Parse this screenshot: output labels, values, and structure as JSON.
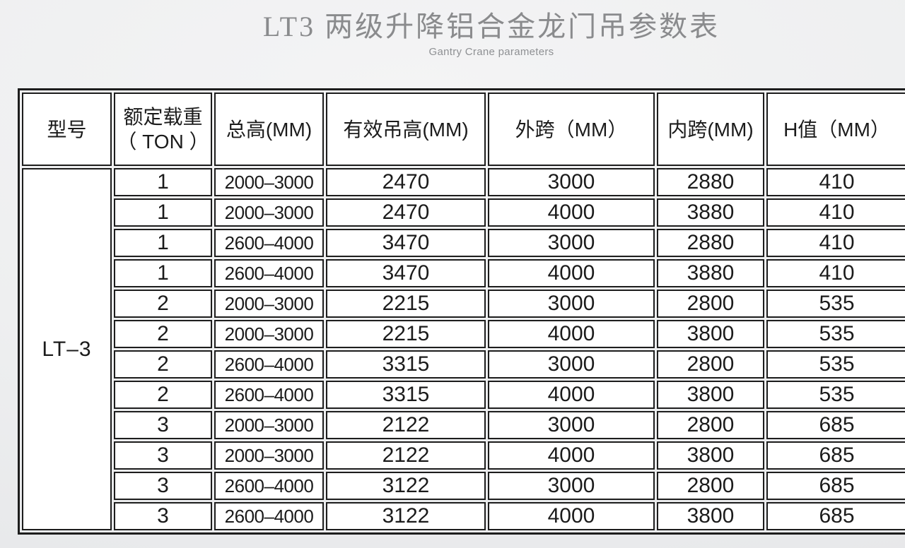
{
  "page": {
    "title": "LT3 两级升降铝合金龙门吊参数表",
    "subtitle": "Gantry Crane parameters",
    "title_color": "#8a8b8d",
    "background_color": "#edeef0"
  },
  "table": {
    "border_color": "#1d1d1d",
    "cell_background": "#ffffff",
    "model_label": "LT–3",
    "headers": {
      "model": "型号",
      "rated_load_line1": "额定载重",
      "rated_load_line2": "（ TON ）",
      "total_height": "总高(MM)",
      "effective_lift_height": "有效吊高(MM)",
      "outer_span": "外跨（MM）",
      "inner_span": "内跨(MM)",
      "h_value": "H值（MM）"
    },
    "column_keys": [
      "rated_load",
      "total_height",
      "effective_lift_height",
      "outer_span",
      "inner_span",
      "h_value"
    ],
    "rows": [
      {
        "rated_load": "1",
        "total_height": "2000–3000",
        "effective_lift_height": "2470",
        "outer_span": "3000",
        "inner_span": "2880",
        "h_value": "410"
      },
      {
        "rated_load": "1",
        "total_height": "2000–3000",
        "effective_lift_height": "2470",
        "outer_span": "4000",
        "inner_span": "3880",
        "h_value": "410"
      },
      {
        "rated_load": "1",
        "total_height": "2600–4000",
        "effective_lift_height": "3470",
        "outer_span": "3000",
        "inner_span": "2880",
        "h_value": "410"
      },
      {
        "rated_load": "1",
        "total_height": "2600–4000",
        "effective_lift_height": "3470",
        "outer_span": "4000",
        "inner_span": "3880",
        "h_value": "410"
      },
      {
        "rated_load": "2",
        "total_height": "2000–3000",
        "effective_lift_height": "2215",
        "outer_span": "3000",
        "inner_span": "2800",
        "h_value": "535"
      },
      {
        "rated_load": "2",
        "total_height": "2000–3000",
        "effective_lift_height": "2215",
        "outer_span": "4000",
        "inner_span": "3800",
        "h_value": "535"
      },
      {
        "rated_load": "2",
        "total_height": "2600–4000",
        "effective_lift_height": "3315",
        "outer_span": "3000",
        "inner_span": "2800",
        "h_value": "535"
      },
      {
        "rated_load": "2",
        "total_height": "2600–4000",
        "effective_lift_height": "3315",
        "outer_span": "4000",
        "inner_span": "3800",
        "h_value": "535"
      },
      {
        "rated_load": "3",
        "total_height": "2000–3000",
        "effective_lift_height": "2122",
        "outer_span": "3000",
        "inner_span": "2800",
        "h_value": "685"
      },
      {
        "rated_load": "3",
        "total_height": "2000–3000",
        "effective_lift_height": "2122",
        "outer_span": "4000",
        "inner_span": "3800",
        "h_value": "685"
      },
      {
        "rated_load": "3",
        "total_height": "2600–4000",
        "effective_lift_height": "3122",
        "outer_span": "3000",
        "inner_span": "2800",
        "h_value": "685"
      },
      {
        "rated_load": "3",
        "total_height": "2600–4000",
        "effective_lift_height": "3122",
        "outer_span": "4000",
        "inner_span": "3800",
        "h_value": "685"
      }
    ]
  }
}
